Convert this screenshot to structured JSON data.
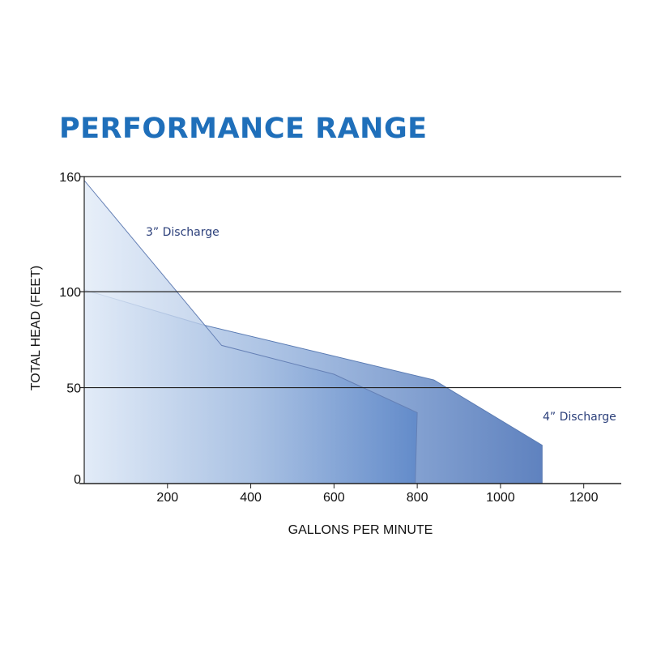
{
  "chart_data": {
    "type": "area",
    "title": "PERFORMANCE RANGE",
    "xlabel": "GALLONS PER MINUTE",
    "ylabel": "TOTAL HEAD (FEET)",
    "xlim": [
      0,
      1250
    ],
    "ylim": [
      0,
      160
    ],
    "x_ticks": [
      200,
      400,
      600,
      800,
      1000,
      1200
    ],
    "y_ticks": [
      0,
      50,
      100,
      160
    ],
    "grid": "horizontal",
    "series": [
      {
        "name": "4” Discharge",
        "color": "#5a7fbf",
        "points": [
          [
            0,
            101
          ],
          [
            280,
            83
          ],
          [
            840,
            54
          ],
          [
            1100,
            20
          ],
          [
            1100,
            0
          ]
        ]
      },
      {
        "name": "3” Discharge",
        "color": "#6f95cf",
        "points": [
          [
            0,
            158
          ],
          [
            330,
            72
          ],
          [
            600,
            57
          ],
          [
            800,
            37
          ],
          [
            795,
            0
          ]
        ]
      }
    ]
  }
}
